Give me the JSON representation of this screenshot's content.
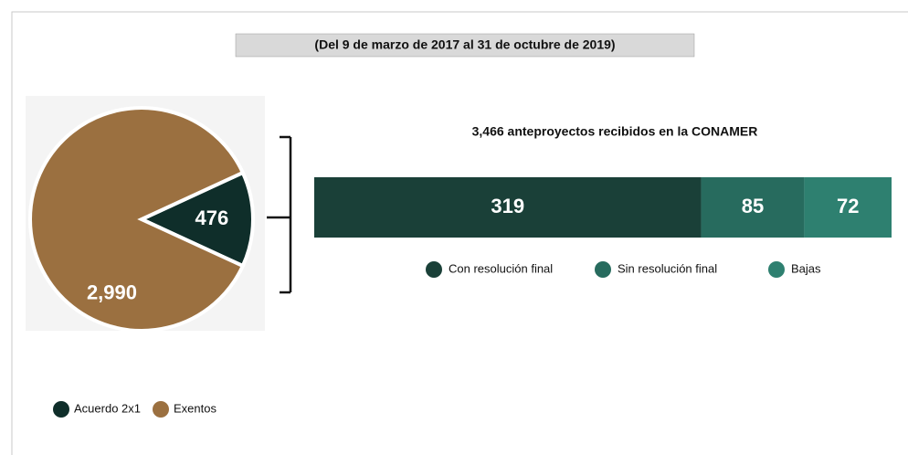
{
  "header": "(Del 9 de marzo de 2017 al 31 de octubre de 2019)",
  "chart_data": [
    {
      "type": "pie",
      "categories": [
        "Acuerdo 2x1",
        "Exentos"
      ],
      "values": [
        476,
        2990
      ],
      "value_labels": [
        "476",
        "2,990"
      ],
      "colors": [
        "#0f2e2a",
        "#9b7040"
      ]
    },
    {
      "type": "stacked-bar",
      "title": "3,466 anteproyectos recibidos en la CONAMER",
      "series": [
        {
          "name": "Con resolución final",
          "color": "#1a4038",
          "values": [
            319
          ]
        },
        {
          "name": "Sin resolución final",
          "color": "#276b5e",
          "values": [
            85
          ]
        },
        {
          "name": "Bajas",
          "color": "#2e8070",
          "values": [
            72
          ]
        }
      ]
    }
  ]
}
